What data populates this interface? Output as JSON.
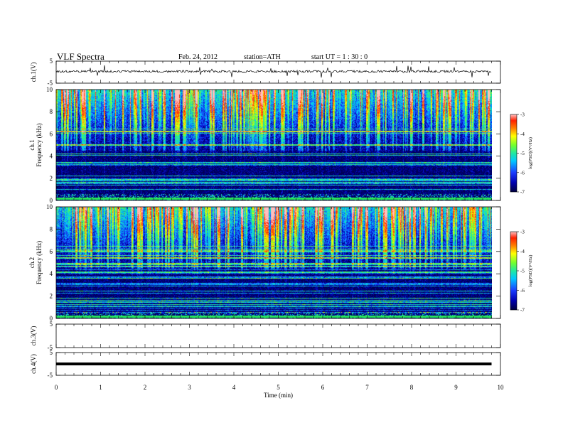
{
  "header": {
    "title": "VLF  Spectra",
    "date": "Feb. 24, 2012",
    "station": "station=ATH",
    "start": "start  UT  =   1 : 30 : 0"
  },
  "chart_data": [
    {
      "type": "line",
      "panel": "ch1-waveform",
      "ylabel": "ch.1(V)",
      "ylim": [
        -5,
        5
      ],
      "yticks": [
        5,
        -5
      ],
      "xlim": [
        0,
        10
      ],
      "description_values": {
        "baseline_V": 0,
        "data_extent_min": 9.8
      }
    },
    {
      "type": "heatmap",
      "panel": "ch1-spectrogram",
      "ylabel": [
        "ch.1",
        "Frequency  (kHz)"
      ],
      "ylim": [
        0,
        10
      ],
      "yticks": [
        0,
        2,
        4,
        6,
        8,
        10
      ],
      "xlim": [
        0,
        10
      ],
      "colorbar": {
        "label": "log(PSD)(V²/Hz)",
        "range": [
          -7,
          -3
        ],
        "ticks": [
          -3,
          -4,
          -5,
          -6,
          -7
        ]
      }
    },
    {
      "type": "heatmap",
      "panel": "ch2-spectrogram",
      "ylabel": [
        "ch.2",
        "Frequency  (kHz)"
      ],
      "ylim": [
        0,
        10
      ],
      "yticks": [
        0,
        2,
        4,
        6,
        8,
        10
      ],
      "xlim": [
        0,
        10
      ],
      "colorbar": {
        "label": "log(PSD)(V²/Hz)",
        "range": [
          -7,
          -3
        ],
        "ticks": [
          -3,
          -4,
          -5,
          -6,
          -7
        ]
      }
    },
    {
      "type": "line",
      "panel": "ch3-waveform",
      "ylabel": "ch.3(V)",
      "ylim": [
        -5,
        5
      ],
      "yticks": [
        5,
        -5
      ],
      "xlim": [
        0,
        10
      ]
    },
    {
      "type": "line",
      "panel": "ch4-waveform",
      "ylabel": "ch.4(V)",
      "ylim": [
        -5,
        5
      ],
      "yticks": [
        5,
        -5
      ],
      "xlim": [
        0,
        10
      ]
    }
  ],
  "x_axis": {
    "label": "Time  (min)",
    "ticks": [
      "0",
      "1",
      "2",
      "3",
      "4",
      "5",
      "6",
      "7",
      "8",
      "9",
      "10"
    ]
  },
  "colorbar_tick_labels": [
    "-3",
    "-4",
    "-5",
    "-6",
    "-7"
  ],
  "colormap": [
    "#000040",
    "#0000b0",
    "#1a3cff",
    "#00c8ff",
    "#20e8a0",
    "#70ff30",
    "#ffff00",
    "#ff8000",
    "#ff2000",
    "#ffc0c0"
  ]
}
